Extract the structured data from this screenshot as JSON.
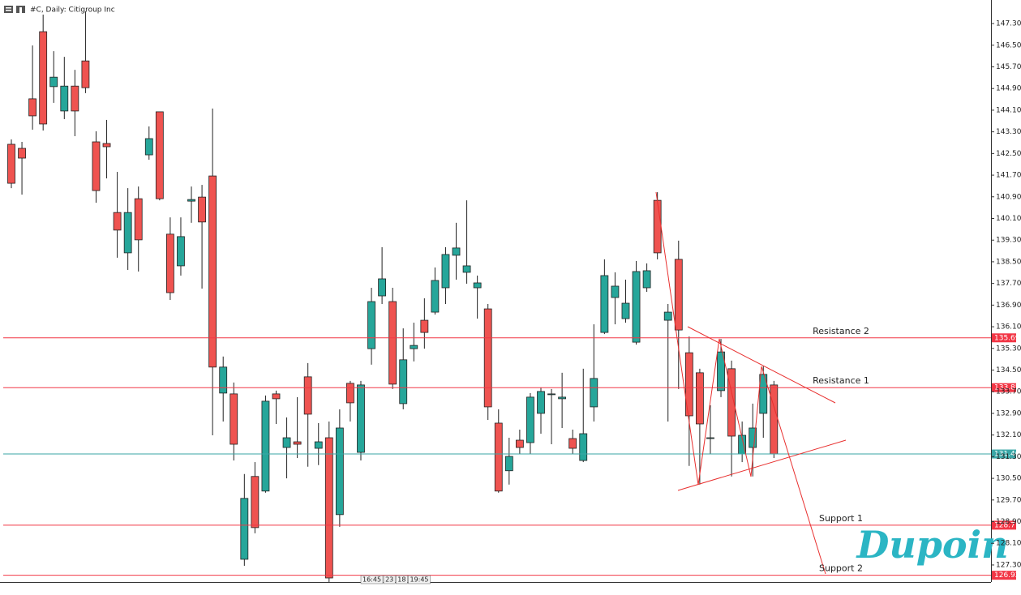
{
  "chart_data": {
    "type": "candlestick",
    "title": "#C, Daily:  Citigroup Inc",
    "up_color": "#26a69a",
    "down_color": "#ef5350",
    "open": [
      142.84,
      142.69,
      144.52,
      147,
      144.97,
      144.07,
      144.99,
      145.92,
      142.93,
      142.87,
      140.32,
      138.83,
      140.83,
      142.45,
      144.04,
      139.52,
      138.35,
      140.74,
      140.89,
      141.67,
      133.65,
      133.62,
      127.51,
      130.57,
      130.03,
      133.62,
      131.64,
      131.85,
      134.25,
      131.61,
      132,
      129.16,
      134.01,
      131.46,
      135.29,
      137.24,
      137.03,
      133.26,
      135.29,
      136.34,
      136.64,
      137.54,
      138.74,
      138.11,
      137.54,
      136.76,
      132.54,
      130.78,
      131.91,
      131.82,
      132.9,
      133.59,
      133.44,
      131.97,
      131.16,
      133.14,
      135.89,
      137.18,
      136.4,
      135.53,
      137.54,
      140.77,
      136.34,
      138.59,
      135.14,
      134.4,
      131.97,
      133.74,
      134.55,
      131.4,
      131.64,
      132.9,
      133.95
    ],
    "high": [
      143.02,
      142.93,
      146.49,
      147.63,
      146.28,
      146.07,
      145.59,
      147.75,
      143.32,
      143.74,
      141.82,
      141.22,
      141.28,
      143.5,
      144.04,
      140.14,
      140.14,
      141.28,
      141.34,
      144.16,
      135,
      134.04,
      130.66,
      131.1,
      133.56,
      133.74,
      132.75,
      133.5,
      134.76,
      132.54,
      132.6,
      133.05,
      134.1,
      134.1,
      137.54,
      139.04,
      137.54,
      136.04,
      136.25,
      137.15,
      138.29,
      139.04,
      139.94,
      140.77,
      137.99,
      136.94,
      133.05,
      132,
      132.3,
      133.65,
      133.86,
      133.8,
      134.4,
      132.3,
      134.55,
      136.19,
      138.59,
      138.11,
      137.84,
      138.53,
      138.44,
      141.07,
      136.94,
      139.28,
      135.74,
      134.55,
      133.2,
      135.65,
      134.85,
      132.6,
      133.26,
      134.64,
      134.1
    ],
    "low": [
      141.22,
      140.98,
      143.38,
      143.35,
      144.37,
      143.77,
      143.14,
      144.73,
      140.68,
      141.58,
      138.65,
      138.2,
      138.14,
      142.27,
      140.77,
      137.09,
      137.99,
      139.94,
      137.51,
      132.09,
      132.6,
      131.16,
      127.27,
      128.47,
      129.97,
      132.51,
      130.5,
      131.25,
      130.93,
      130.99,
      126.67,
      128.71,
      132.6,
      131.16,
      134.7,
      136.94,
      133.8,
      133.05,
      134.82,
      135.29,
      136.55,
      136.94,
      137.84,
      137.69,
      136.4,
      132.66,
      129.97,
      130.27,
      131.4,
      131.4,
      132.15,
      131.76,
      132.36,
      131.4,
      131.1,
      132.6,
      135.83,
      136.19,
      136.25,
      135.44,
      137.39,
      138.59,
      132.6,
      133.8,
      130.96,
      130.27,
      131.4,
      133.5,
      130.57,
      131.1,
      130.57,
      132,
      131.25
    ],
    "close": [
      141.4,
      142.33,
      143.89,
      143.59,
      145.32,
      144.99,
      144.07,
      144.93,
      141.13,
      142.75,
      139.67,
      140.32,
      139.31,
      143.05,
      140.83,
      137.36,
      139.43,
      140.8,
      139.97,
      134.61,
      134.61,
      131.76,
      129.76,
      128.68,
      133.35,
      133.44,
      132,
      131.76,
      132.87,
      131.85,
      126.82,
      132.36,
      133.29,
      133.95,
      137.03,
      137.87,
      133.98,
      134.88,
      135.41,
      135.89,
      137.81,
      138.77,
      139.01,
      138.35,
      137.72,
      133.14,
      130.03,
      131.31,
      131.64,
      133.5,
      133.71,
      133.62,
      133.5,
      131.61,
      132.15,
      134.19,
      137.99,
      137.6,
      136.97,
      138.14,
      138.17,
      138.83,
      136.64,
      135.98,
      132.81,
      132.51,
      132,
      135.17,
      132.06,
      132.09,
      132.36,
      134.34,
      131.4
    ],
    "ylim": [
      126.67,
      148.17
    ],
    "yticks": [
      {
        "value": 127.3,
        "label": "127.30"
      },
      {
        "value": 128.1,
        "label": "128.10"
      },
      {
        "value": 128.9,
        "label": "128.90"
      },
      {
        "value": 129.7,
        "label": "129.70"
      },
      {
        "value": 130.5,
        "label": "130.50"
      },
      {
        "value": 131.3,
        "label": "131.30"
      },
      {
        "value": 132.1,
        "label": "132.10"
      },
      {
        "value": 132.9,
        "label": "132.90"
      },
      {
        "value": 133.7,
        "label": "133.70"
      },
      {
        "value": 134.5,
        "label": "134.50"
      },
      {
        "value": 135.3,
        "label": "135.30"
      },
      {
        "value": 136.1,
        "label": "136.10"
      },
      {
        "value": 136.9,
        "label": "136.90"
      },
      {
        "value": 137.7,
        "label": "137.70"
      },
      {
        "value": 138.5,
        "label": "138.50"
      },
      {
        "value": 139.3,
        "label": "139.30"
      },
      {
        "value": 140.1,
        "label": "140.10"
      },
      {
        "value": 140.9,
        "label": "140.90"
      },
      {
        "value": 141.7,
        "label": "141.70"
      },
      {
        "value": 142.5,
        "label": "142.50"
      },
      {
        "value": 143.3,
        "label": "143.30"
      },
      {
        "value": 144.1,
        "label": "144.10"
      },
      {
        "value": 144.9,
        "label": "144.90"
      },
      {
        "value": 145.7,
        "label": "145.70"
      },
      {
        "value": 146.5,
        "label": "146.50"
      },
      {
        "value": 147.3,
        "label": "147.30"
      }
    ],
    "levels": [
      {
        "name": "Resistance 2",
        "value": 135.69,
        "color": "#f23645"
      },
      {
        "name": "Resistance 1",
        "value": 133.85,
        "color": "#f23645"
      },
      {
        "value": 131.4,
        "value_label": "131.40",
        "color": "#3aa6a6"
      },
      {
        "name": "Support 1",
        "value": 128.77,
        "color": "#f23645"
      },
      {
        "name": "Support 2",
        "value": 126.92,
        "color": "#f23645"
      }
    ],
    "time_labels": [
      "16:45",
      "23",
      "18",
      "19:45"
    ],
    "watermark": "Dupoin"
  }
}
